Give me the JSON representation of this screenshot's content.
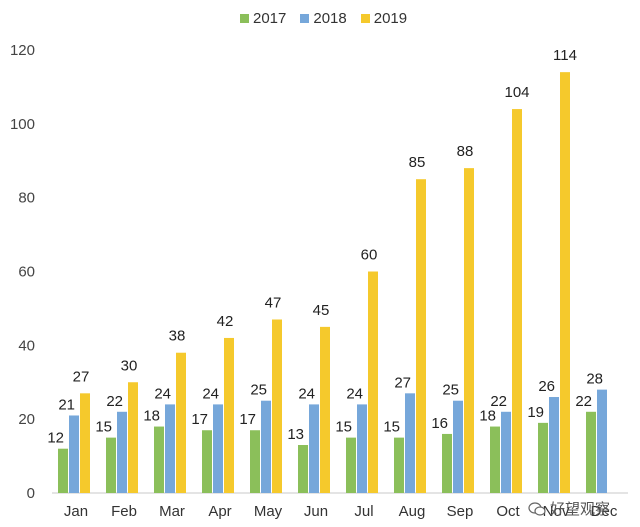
{
  "chart_data": {
    "type": "bar",
    "title": "",
    "xlabel": "",
    "ylabel": "",
    "ylim": [
      0,
      120
    ],
    "yticks": [
      0,
      20,
      40,
      60,
      80,
      100,
      120
    ],
    "grid": false,
    "legend_position": "top",
    "categories": [
      "Jan",
      "Feb",
      "Mar",
      "Apr",
      "May",
      "Jun",
      "Jul",
      "Aug",
      "Sep",
      "Oct",
      "Nov",
      "Dec"
    ],
    "series": [
      {
        "name": "2017",
        "color": "#8bbf5a",
        "values": [
          12,
          15,
          18,
          17,
          17,
          13,
          15,
          15,
          16,
          18,
          19,
          22
        ]
      },
      {
        "name": "2018",
        "color": "#76a7da",
        "values": [
          21,
          22,
          24,
          24,
          25,
          24,
          24,
          27,
          25,
          22,
          26,
          28
        ]
      },
      {
        "name": "2019",
        "color": "#f5c92c",
        "values": [
          27,
          30,
          38,
          42,
          47,
          45,
          60,
          85,
          88,
          104,
          114,
          null
        ]
      }
    ]
  },
  "watermark": {
    "icon": "wechat-icon",
    "text": "好望观察"
  }
}
